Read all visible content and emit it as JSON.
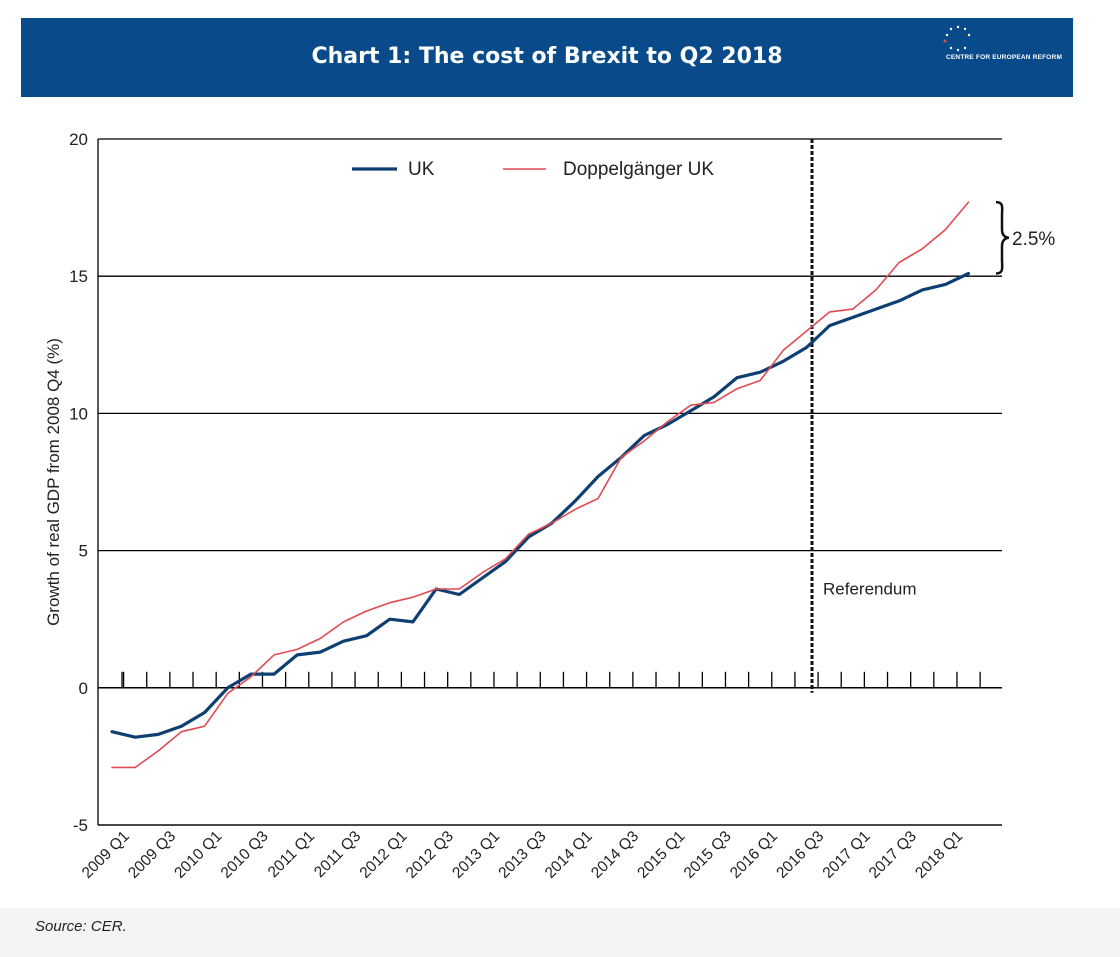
{
  "header": {
    "title": "Chart 1: The cost of Brexit to Q2 2018",
    "logo_text": "CENTRE FOR EUROPEAN REFORM"
  },
  "footer": {
    "source": "Source: CER."
  },
  "colors": {
    "header_bg": "#084a8a",
    "uk": "#0d3f73",
    "doppelganger": "#e04b52",
    "axis": "#000000"
  },
  "chart_data": {
    "type": "line",
    "title": "",
    "ylabel": "Growth of real GDP from 2008 Q4 (%)",
    "xlabel": "",
    "ylim": [
      -5,
      20
    ],
    "yticks": [
      "20",
      "15",
      "10",
      "5",
      "0",
      "-5"
    ],
    "ytick_values": [
      20,
      15,
      10,
      5,
      0,
      -5
    ],
    "grid": "horizontal",
    "legend_placement": "top",
    "x": [
      "2009 Q1",
      "2009 Q2",
      "2009 Q3",
      "2009 Q4",
      "2010 Q1",
      "2010 Q2",
      "2010 Q3",
      "2010 Q4",
      "2011 Q1",
      "2011 Q2",
      "2011 Q3",
      "2011 Q4",
      "2012 Q1",
      "2012 Q2",
      "2012 Q3",
      "2012 Q4",
      "2013 Q1",
      "2013 Q2",
      "2013 Q3",
      "2013 Q4",
      "2014 Q1",
      "2014 Q2",
      "2014 Q3",
      "2014 Q4",
      "2015 Q1",
      "2015 Q2",
      "2015 Q3",
      "2015 Q4",
      "2016 Q1",
      "2016 Q2",
      "2016 Q3",
      "2016 Q4",
      "2017 Q1",
      "2017 Q2",
      "2017 Q3",
      "2017 Q4",
      "2018 Q1",
      "2018 Q2"
    ],
    "xtick_labels": [
      "2009 Q1",
      "2009 Q3",
      "2010 Q1",
      "2010 Q3",
      "2011 Q1",
      "2011 Q3",
      "2012 Q1",
      "2012 Q3",
      "2013 Q1",
      "2013 Q3",
      "2014 Q1",
      "2014 Q3",
      "2015 Q1",
      "2015 Q3",
      "2016 Q1",
      "2016 Q3",
      "2017 Q1",
      "2017 Q3",
      "2018 Q1"
    ],
    "series": [
      {
        "name": "UK",
        "values": [
          -1.6,
          -1.8,
          -1.7,
          -1.4,
          -0.9,
          0.0,
          0.5,
          0.5,
          1.2,
          1.3,
          1.7,
          1.9,
          2.5,
          2.4,
          3.6,
          3.4,
          4.0,
          4.6,
          5.5,
          6.0,
          6.8,
          7.7,
          8.4,
          9.2,
          9.6,
          10.1,
          10.6,
          11.3,
          11.5,
          11.9,
          12.4,
          13.2,
          13.5,
          13.8,
          14.1,
          14.5,
          14.7,
          15.1
        ]
      },
      {
        "name": "Doppelgänger UK",
        "values": [
          -2.9,
          -2.9,
          -2.3,
          -1.6,
          -1.4,
          -0.2,
          0.4,
          1.2,
          1.4,
          1.8,
          2.4,
          2.8,
          3.1,
          3.3,
          3.6,
          3.6,
          4.2,
          4.7,
          5.6,
          6.0,
          6.5,
          6.9,
          8.4,
          9.0,
          9.7,
          10.3,
          10.4,
          10.9,
          11.2,
          12.3,
          13.0,
          13.7,
          13.8,
          14.5,
          15.5,
          16.0,
          16.7,
          17.7
        ]
      }
    ],
    "annotations": {
      "referendum_label": "Referendum",
      "referendum_x": "2016 Q2",
      "gap_label": "2.5%"
    }
  }
}
